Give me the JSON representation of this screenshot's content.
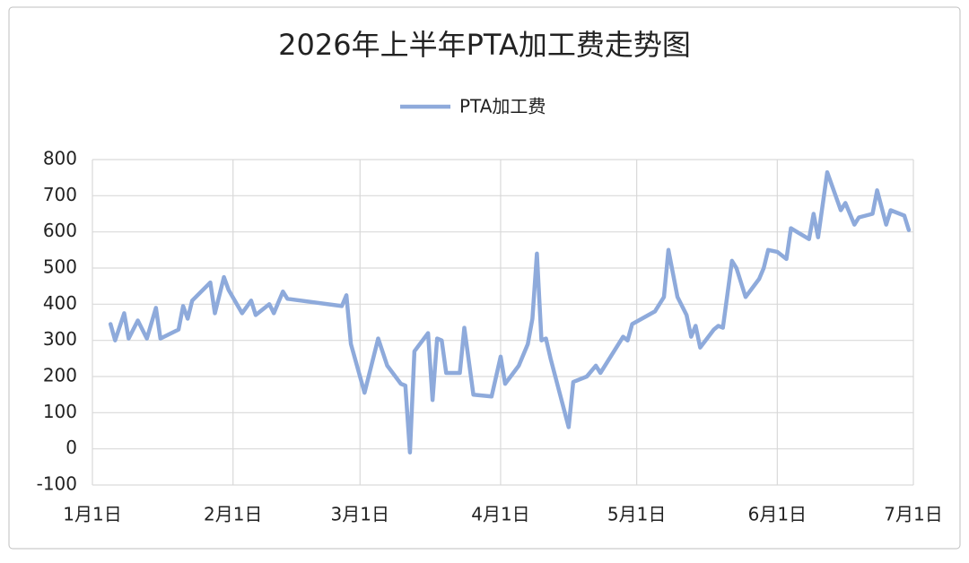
{
  "chart_data": {
    "type": "line",
    "title": "2026年上半年PTA加工费走势图",
    "x": [
      "2026-01-05",
      "2026-01-06",
      "2026-01-08",
      "2026-01-09",
      "2026-01-11",
      "2026-01-13",
      "2026-01-15",
      "2026-01-16",
      "2026-01-20",
      "2026-01-21",
      "2026-01-22",
      "2026-01-23",
      "2026-01-27",
      "2026-01-28",
      "2026-01-30",
      "2026-01-31",
      "2026-02-03",
      "2026-02-05",
      "2026-02-06",
      "2026-02-09",
      "2026-02-10",
      "2026-02-12",
      "2026-02-13",
      "2026-02-25",
      "2026-02-26",
      "2026-02-27",
      "2026-03-02",
      "2026-03-05",
      "2026-03-07",
      "2026-03-10",
      "2026-03-11",
      "2026-03-12",
      "2026-03-13",
      "2026-03-16",
      "2026-03-17",
      "2026-03-18",
      "2026-03-19",
      "2026-03-20",
      "2026-03-23",
      "2026-03-24",
      "2026-03-26",
      "2026-03-30",
      "2026-04-01",
      "2026-04-02",
      "2026-04-05",
      "2026-04-07",
      "2026-04-08",
      "2026-04-09",
      "2026-04-10",
      "2026-04-11",
      "2026-04-12",
      "2026-04-16",
      "2026-04-17",
      "2026-04-20",
      "2026-04-22",
      "2026-04-23",
      "2026-04-28",
      "2026-04-29",
      "2026-04-30",
      "2026-05-05",
      "2026-05-07",
      "2026-05-08",
      "2026-05-10",
      "2026-05-12",
      "2026-05-13",
      "2026-05-14",
      "2026-05-15",
      "2026-05-18",
      "2026-05-19",
      "2026-05-20",
      "2026-05-22",
      "2026-05-23",
      "2026-05-25",
      "2026-05-28",
      "2026-05-29",
      "2026-05-30",
      "2026-06-01",
      "2026-06-03",
      "2026-06-04",
      "2026-06-08",
      "2026-06-09",
      "2026-06-10",
      "2026-06-12",
      "2026-06-15",
      "2026-06-16",
      "2026-06-18",
      "2026-06-19",
      "2026-06-22",
      "2026-06-23",
      "2026-06-25",
      "2026-06-26",
      "2026-06-29",
      "2026-06-30"
    ],
    "series": [
      {
        "name": "PTA加工费",
        "color": "#8eaadb",
        "values": [
          345,
          300,
          375,
          305,
          355,
          305,
          390,
          305,
          330,
          395,
          360,
          410,
          460,
          375,
          475,
          440,
          375,
          410,
          370,
          400,
          375,
          435,
          415,
          395,
          425,
          290,
          155,
          305,
          230,
          180,
          175,
          -10,
          270,
          320,
          135,
          305,
          300,
          210,
          210,
          335,
          150,
          145,
          255,
          180,
          230,
          290,
          360,
          540,
          300,
          305,
          250,
          60,
          185,
          200,
          230,
          210,
          310,
          300,
          345,
          380,
          420,
          550,
          420,
          370,
          310,
          340,
          280,
          330,
          340,
          335,
          520,
          500,
          420,
          470,
          500,
          550,
          545,
          525,
          610,
          580,
          650,
          585,
          765,
          660,
          680,
          620,
          640,
          650,
          715,
          620,
          660,
          645,
          605
        ]
      }
    ],
    "xlim": [
      "2026-01-01",
      "2026-07-01"
    ],
    "xticks": [
      {
        "value": "2026-01-01",
        "label": "1月1日"
      },
      {
        "value": "2026-02-01",
        "label": "2月1日"
      },
      {
        "value": "2026-03-01",
        "label": "3月1日"
      },
      {
        "value": "2026-04-01",
        "label": "4月1日"
      },
      {
        "value": "2026-05-01",
        "label": "5月1日"
      },
      {
        "value": "2026-06-01",
        "label": "6月1日"
      },
      {
        "value": "2026-07-01",
        "label": "7月1日"
      }
    ],
    "ylim": [
      -100,
      800
    ],
    "yticks": [
      -100,
      0,
      100,
      200,
      300,
      400,
      500,
      600,
      700,
      800
    ],
    "grid": true,
    "legend": "top"
  }
}
